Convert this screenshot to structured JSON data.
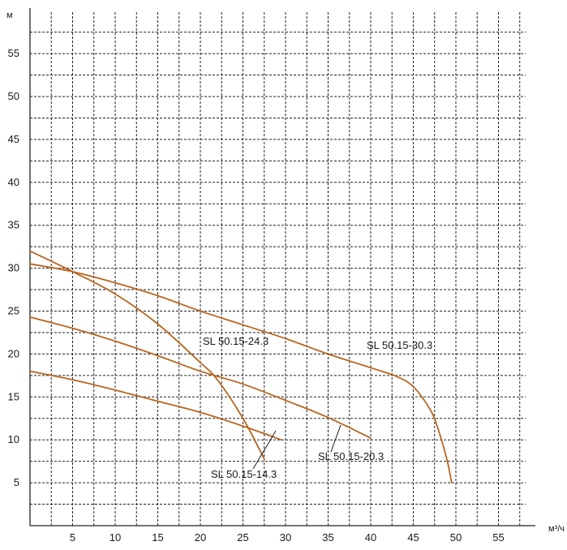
{
  "chart_data": {
    "type": "line",
    "title": "",
    "xlabel": "м³/ч",
    "ylabel": "м",
    "xlim": [
      0,
      58
    ],
    "ylim": [
      0,
      59
    ],
    "xticks": [
      5,
      10,
      15,
      20,
      25,
      30,
      35,
      40,
      45,
      50,
      55
    ],
    "yticks": [
      5,
      10,
      15,
      20,
      25,
      30,
      35,
      40,
      45,
      50,
      55
    ],
    "grid": true,
    "legend": "labels on curves",
    "colors": {
      "curve": "#b8651e",
      "grid": "#222222",
      "axis": "#222222"
    },
    "series": [
      {
        "name": "SL 50.15-30.3",
        "x": [
          0,
          5,
          10,
          15,
          20,
          25,
          30,
          35,
          40,
          43,
          45,
          47,
          48,
          49,
          49.5
        ],
        "y": [
          30.5,
          29.6,
          28.3,
          26.8,
          25.0,
          23.4,
          21.8,
          20.0,
          18.4,
          17.4,
          16.2,
          13.5,
          11.0,
          7.5,
          5.0
        ]
      },
      {
        "name": "SL 50.15-24.3",
        "x": [
          0,
          5,
          10,
          15,
          20,
          22,
          25,
          27.5
        ],
        "y": [
          32.0,
          29.6,
          27.0,
          23.5,
          19.0,
          17.0,
          12.5,
          7.8
        ]
      },
      {
        "name": "SL 50.15-20.3",
        "x": [
          0,
          5,
          10,
          15,
          20,
          25,
          30,
          35,
          40
        ],
        "y": [
          24.3,
          23.0,
          21.5,
          19.8,
          18.0,
          16.5,
          14.6,
          12.6,
          10.2
        ]
      },
      {
        "name": "SL 50.15-14.3",
        "x": [
          0,
          5,
          10,
          15,
          20,
          25,
          29.5
        ],
        "y": [
          18.0,
          17.0,
          15.8,
          14.5,
          13.2,
          11.6,
          10.0
        ]
      }
    ]
  }
}
